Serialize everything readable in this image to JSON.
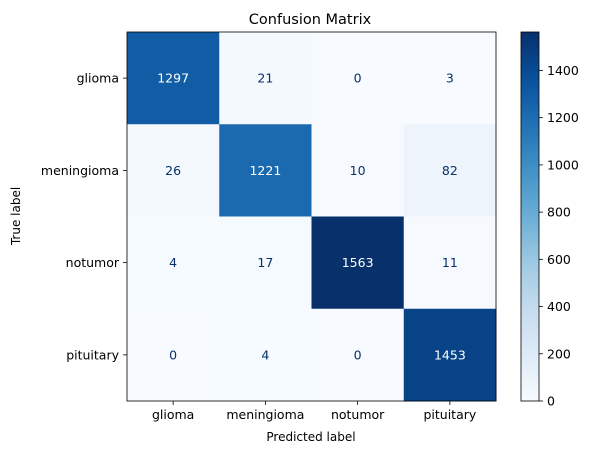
{
  "chart_data": {
    "type": "heatmap",
    "title": "Confusion Matrix",
    "xlabel": "Predicted label",
    "ylabel": "True label",
    "x_categories": [
      "glioma",
      "meningioma",
      "notumor",
      "pituitary"
    ],
    "y_categories": [
      "glioma",
      "meningioma",
      "notumor",
      "pituitary"
    ],
    "values": [
      [
        1297,
        21,
        0,
        3
      ],
      [
        26,
        1221,
        10,
        82
      ],
      [
        4,
        17,
        1563,
        11
      ],
      [
        0,
        4,
        0,
        1453
      ]
    ],
    "colormap": "Blues",
    "colorbar": {
      "min": 0,
      "max": 1563,
      "ticks": [
        0,
        200,
        400,
        600,
        800,
        1000,
        1200,
        1400
      ]
    },
    "colors": {
      "text_light": "#ffffff",
      "text_dark": "#08306b"
    }
  }
}
